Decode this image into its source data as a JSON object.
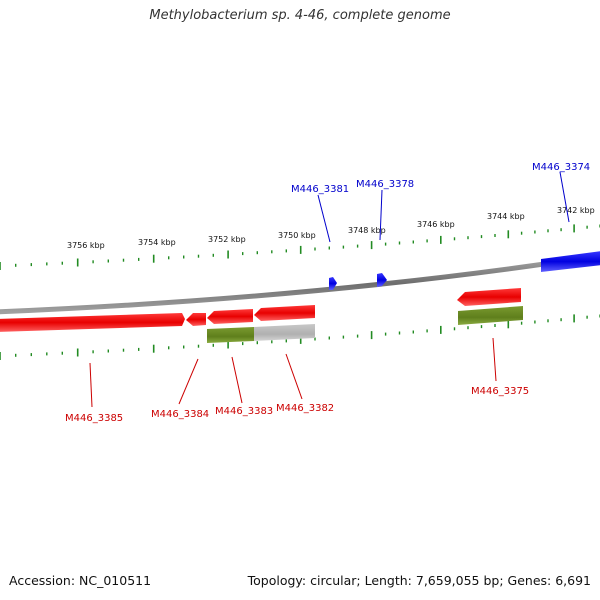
{
  "title": "Methylobacterium sp. 4-46, complete genome",
  "footer": {
    "accession": "Accession: NC_010511",
    "summary": "Topology: circular; Length: 7,659,055 bp; Genes: 6,691"
  },
  "colors": {
    "backbone": "#808080",
    "forward_gene": "#0000ee",
    "reverse_gene": "#ee0000",
    "cds": "#6b8e23",
    "pseudo": "#b8b8b8",
    "tick": "#228b22",
    "label_forward": "#0000cc",
    "label_reverse": "#cc0000"
  },
  "scale_ticks": [
    "3756 kbp",
    "3754 kbp",
    "3752 kbp",
    "3750 kbp",
    "3748 kbp",
    "3746 kbp",
    "3744 kbp",
    "3742 kbp"
  ],
  "genes": [
    {
      "name": "M446_3374",
      "strand": "forward"
    },
    {
      "name": "M446_3378",
      "strand": "forward"
    },
    {
      "name": "M446_3381",
      "strand": "forward"
    },
    {
      "name": "M446_3375",
      "strand": "reverse"
    },
    {
      "name": "M446_3382",
      "strand": "reverse"
    },
    {
      "name": "M446_3383",
      "strand": "reverse"
    },
    {
      "name": "M446_3384",
      "strand": "reverse"
    },
    {
      "name": "M446_3385",
      "strand": "reverse"
    }
  ]
}
